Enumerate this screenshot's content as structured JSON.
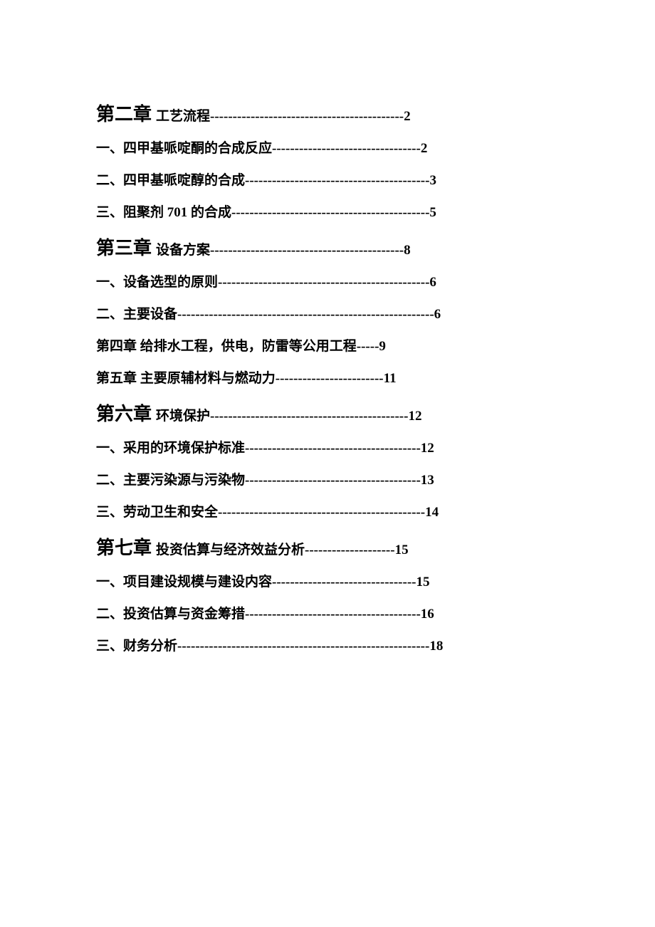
{
  "entries": [
    {
      "type": "chapter",
      "prefix": "第二章",
      "title": "工艺流程",
      "leader": "-------------------------------------------",
      "page": "2"
    },
    {
      "type": "sub",
      "title": "一、四甲基哌啶酮的合成反应",
      "leader": "---------------------------------",
      "page": "2"
    },
    {
      "type": "sub",
      "title": "二、四甲基哌啶醇的合成",
      "leader": "-----------------------------------------",
      "page": "3"
    },
    {
      "type": "sub",
      "title": "三、阻聚剂 701 的合成",
      "leader": "--------------------------------------------",
      "page": "5"
    },
    {
      "type": "chapter",
      "prefix": "第三章",
      "title": "设备方案",
      "leader": "-------------------------------------------",
      "page": "8"
    },
    {
      "type": "sub",
      "title": "一、设备选型的原则",
      "leader": "-----------------------------------------------",
      "page": "6"
    },
    {
      "type": "sub",
      "title": "二、主要设备",
      "leader": "---------------------------------------------------------",
      "page": "6"
    },
    {
      "type": "sub",
      "title": "第四章 给排水工程，供电，防雷等公用工程",
      "leader": "-----",
      "page": "9"
    },
    {
      "type": "sub",
      "title": "第五章 主要原辅材料与燃动力",
      "leader": "------------------------",
      "page": "11"
    },
    {
      "type": "chapter",
      "prefix": "第六章",
      "title": "环境保护",
      "leader": "--------------------------------------------",
      "page": "12"
    },
    {
      "type": "sub",
      "title": "一、采用的环境保护标准",
      "leader": "---------------------------------------",
      "page": "12"
    },
    {
      "type": "sub",
      "title": "二、主要污染源与污染物",
      "leader": "---------------------------------------",
      "page": "13"
    },
    {
      "type": "sub",
      "title": "三、劳动卫生和安全",
      "leader": "----------------------------------------------",
      "page": "14"
    },
    {
      "type": "chapter",
      "prefix": "第七章",
      "title": "投资估算与经济效益分析",
      "leader": "--------------------",
      "page": "15"
    },
    {
      "type": "sub",
      "title": "一、项目建设规模与建设内容",
      "leader": "--------------------------------",
      "page": "15"
    },
    {
      "type": "sub",
      "title": "二、投资估算与资金筹措",
      "leader": "---------------------------------------",
      "page": "16"
    },
    {
      "type": "sub",
      "title": "三、财务分析",
      "leader": "--------------------------------------------------------",
      "page": "18"
    }
  ]
}
